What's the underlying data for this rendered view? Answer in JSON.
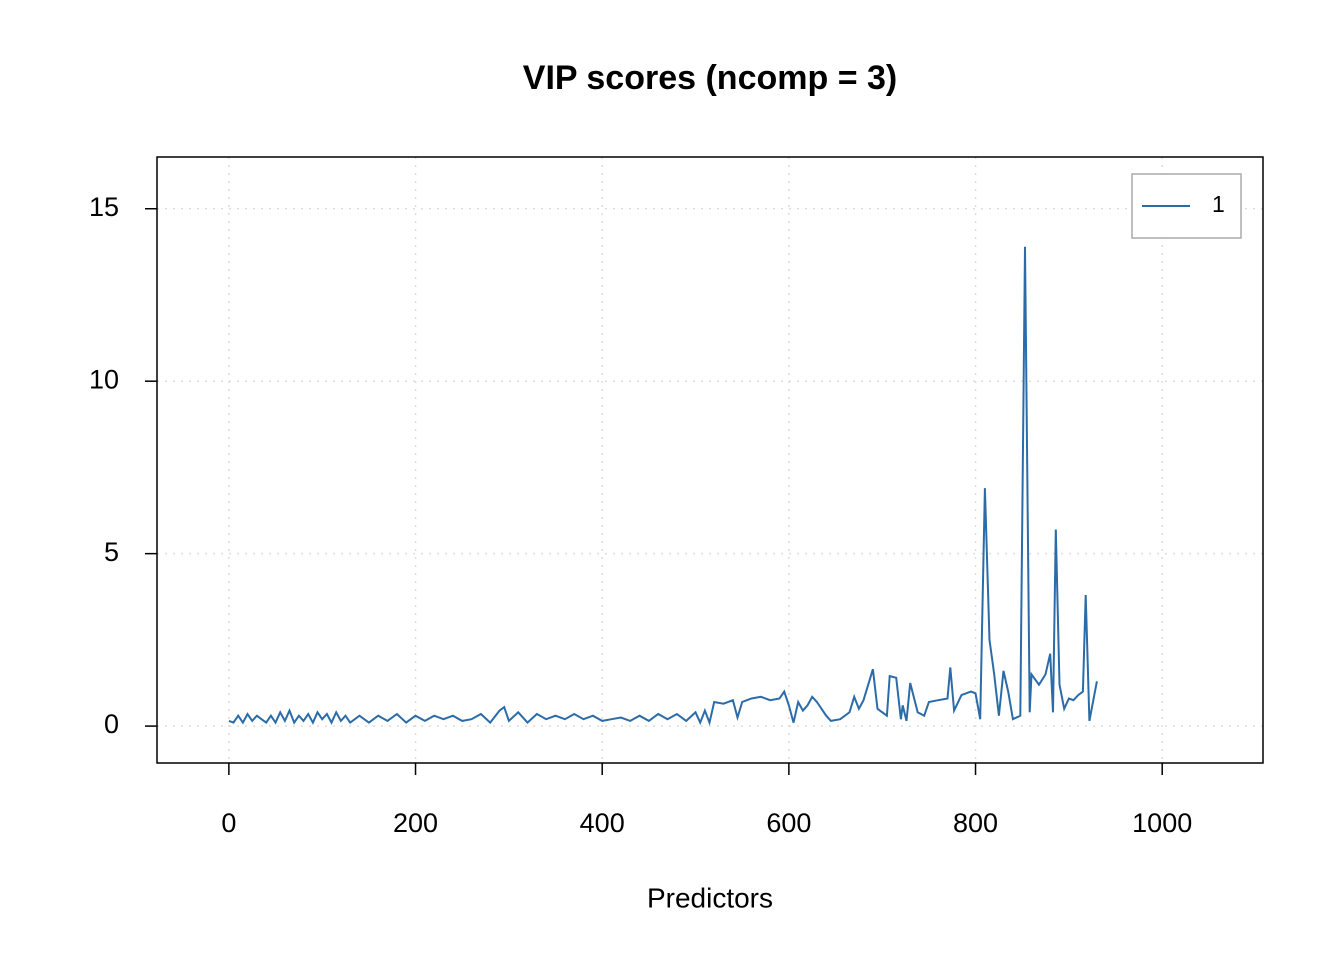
{
  "chart_data": {
    "type": "line",
    "title": "VIP scores (ncomp = 3)",
    "x_label": "Predictors",
    "xlim": [
      -77,
      1108
    ],
    "ylim": [
      -1.07,
      16.5
    ],
    "xticks": [
      0,
      200,
      400,
      600,
      800,
      1000
    ],
    "yticks": [
      0,
      5,
      10,
      15
    ],
    "grid": true,
    "legend": "top-right",
    "series": [
      {
        "name": "1",
        "color": "#2b6ca8",
        "x": [
          0,
          5,
          10,
          15,
          20,
          25,
          30,
          35,
          40,
          45,
          50,
          55,
          60,
          65,
          70,
          75,
          80,
          85,
          90,
          95,
          100,
          105,
          110,
          115,
          120,
          125,
          130,
          140,
          150,
          160,
          170,
          180,
          190,
          200,
          210,
          220,
          230,
          240,
          250,
          260,
          270,
          280,
          290,
          295,
          300,
          310,
          320,
          330,
          340,
          350,
          360,
          370,
          380,
          390,
          400,
          410,
          420,
          430,
          440,
          450,
          460,
          470,
          480,
          490,
          500,
          505,
          510,
          515,
          520,
          530,
          540,
          545,
          550,
          560,
          570,
          580,
          590,
          595,
          600,
          605,
          610,
          615,
          620,
          625,
          630,
          640,
          645,
          655,
          665,
          670,
          675,
          680,
          690,
          695,
          705,
          708,
          715,
          720,
          722,
          726,
          730,
          738,
          745,
          750,
          760,
          770,
          773,
          777,
          785,
          795,
          800,
          805,
          810,
          815,
          820,
          825,
          830,
          835,
          840,
          848,
          853,
          858,
          860,
          868,
          875,
          880,
          883,
          886,
          890,
          895,
          900,
          905,
          910,
          915,
          918,
          922,
          930
        ],
        "values": [
          0.15,
          0.1,
          0.3,
          0.1,
          0.35,
          0.15,
          0.3,
          0.2,
          0.1,
          0.3,
          0.1,
          0.4,
          0.15,
          0.45,
          0.1,
          0.3,
          0.15,
          0.35,
          0.1,
          0.4,
          0.2,
          0.35,
          0.1,
          0.4,
          0.15,
          0.3,
          0.1,
          0.3,
          0.1,
          0.3,
          0.15,
          0.35,
          0.1,
          0.3,
          0.15,
          0.3,
          0.2,
          0.3,
          0.15,
          0.2,
          0.35,
          0.1,
          0.45,
          0.55,
          0.15,
          0.4,
          0.1,
          0.35,
          0.2,
          0.3,
          0.2,
          0.35,
          0.2,
          0.3,
          0.15,
          0.2,
          0.25,
          0.15,
          0.3,
          0.15,
          0.35,
          0.2,
          0.35,
          0.15,
          0.4,
          0.1,
          0.45,
          0.1,
          0.7,
          0.65,
          0.75,
          0.25,
          0.7,
          0.8,
          0.85,
          0.75,
          0.8,
          1.0,
          0.6,
          0.1,
          0.7,
          0.45,
          0.6,
          0.85,
          0.7,
          0.3,
          0.15,
          0.2,
          0.4,
          0.85,
          0.5,
          0.75,
          1.65,
          0.5,
          0.3,
          1.45,
          1.4,
          0.2,
          0.6,
          0.15,
          1.25,
          0.4,
          0.3,
          0.7,
          0.75,
          0.8,
          1.7,
          0.45,
          0.9,
          1.0,
          0.95,
          0.2,
          6.9,
          2.5,
          1.5,
          0.3,
          1.6,
          1.0,
          0.2,
          0.3,
          13.9,
          0.4,
          1.5,
          1.2,
          1.5,
          2.1,
          0.4,
          5.7,
          1.2,
          0.5,
          0.8,
          0.75,
          0.9,
          1.0,
          3.8,
          0.15,
          1.3
        ]
      }
    ]
  }
}
